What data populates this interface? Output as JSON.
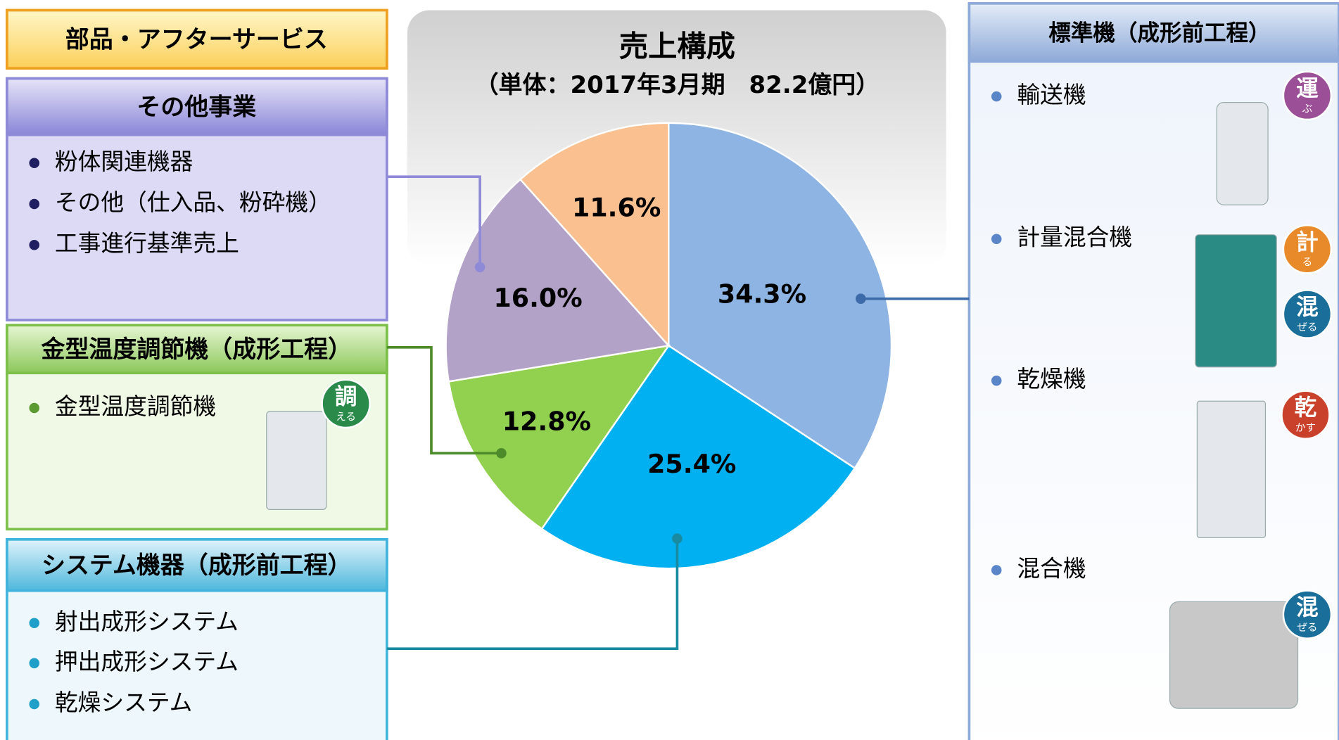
{
  "chart_data": {
    "type": "pie",
    "title": "売上構成",
    "subtitle": "（単体：2017年3月期　82.2億円）",
    "categories": [
      "標準機（成形前工程）",
      "システム機器（成形前工程）",
      "金型温度調節機（成形工程）",
      "その他事業",
      "部品・アフターサービス"
    ],
    "values": [
      34.3,
      25.4,
      12.8,
      16.0,
      11.6
    ],
    "value_labels": [
      "34.3%",
      "25.4%",
      "12.8%",
      "16.0%",
      "11.6%"
    ],
    "colors": [
      "#8db4e2",
      "#00b0f0",
      "#92d050",
      "#b3a2c7",
      "#fac090"
    ]
  },
  "panels": [
    {
      "items": [
        "輸送機",
        "計量混合機",
        "乾燥機",
        "混合機"
      ],
      "badges": [
        {
          "main": "運",
          "sub": "ぶ"
        },
        {
          "main": "計",
          "sub": "る"
        },
        {
          "main": "混",
          "sub": "ぜる"
        },
        {
          "main": "乾",
          "sub": "かす"
        },
        {
          "main": "混",
          "sub": "ぜる"
        }
      ]
    },
    {
      "items": [
        "射出成形システム",
        "押出成形システム",
        "乾燥システム"
      ],
      "badges": []
    },
    {
      "items": [
        "金型温度調節機"
      ],
      "badges": [
        {
          "main": "調",
          "sub": "える"
        }
      ]
    },
    {
      "items": [
        "粉体関連機器",
        "その他（仕入品、粉砕機）",
        "工事進行基準売上"
      ],
      "badges": []
    },
    {
      "items": [],
      "badges": []
    }
  ]
}
